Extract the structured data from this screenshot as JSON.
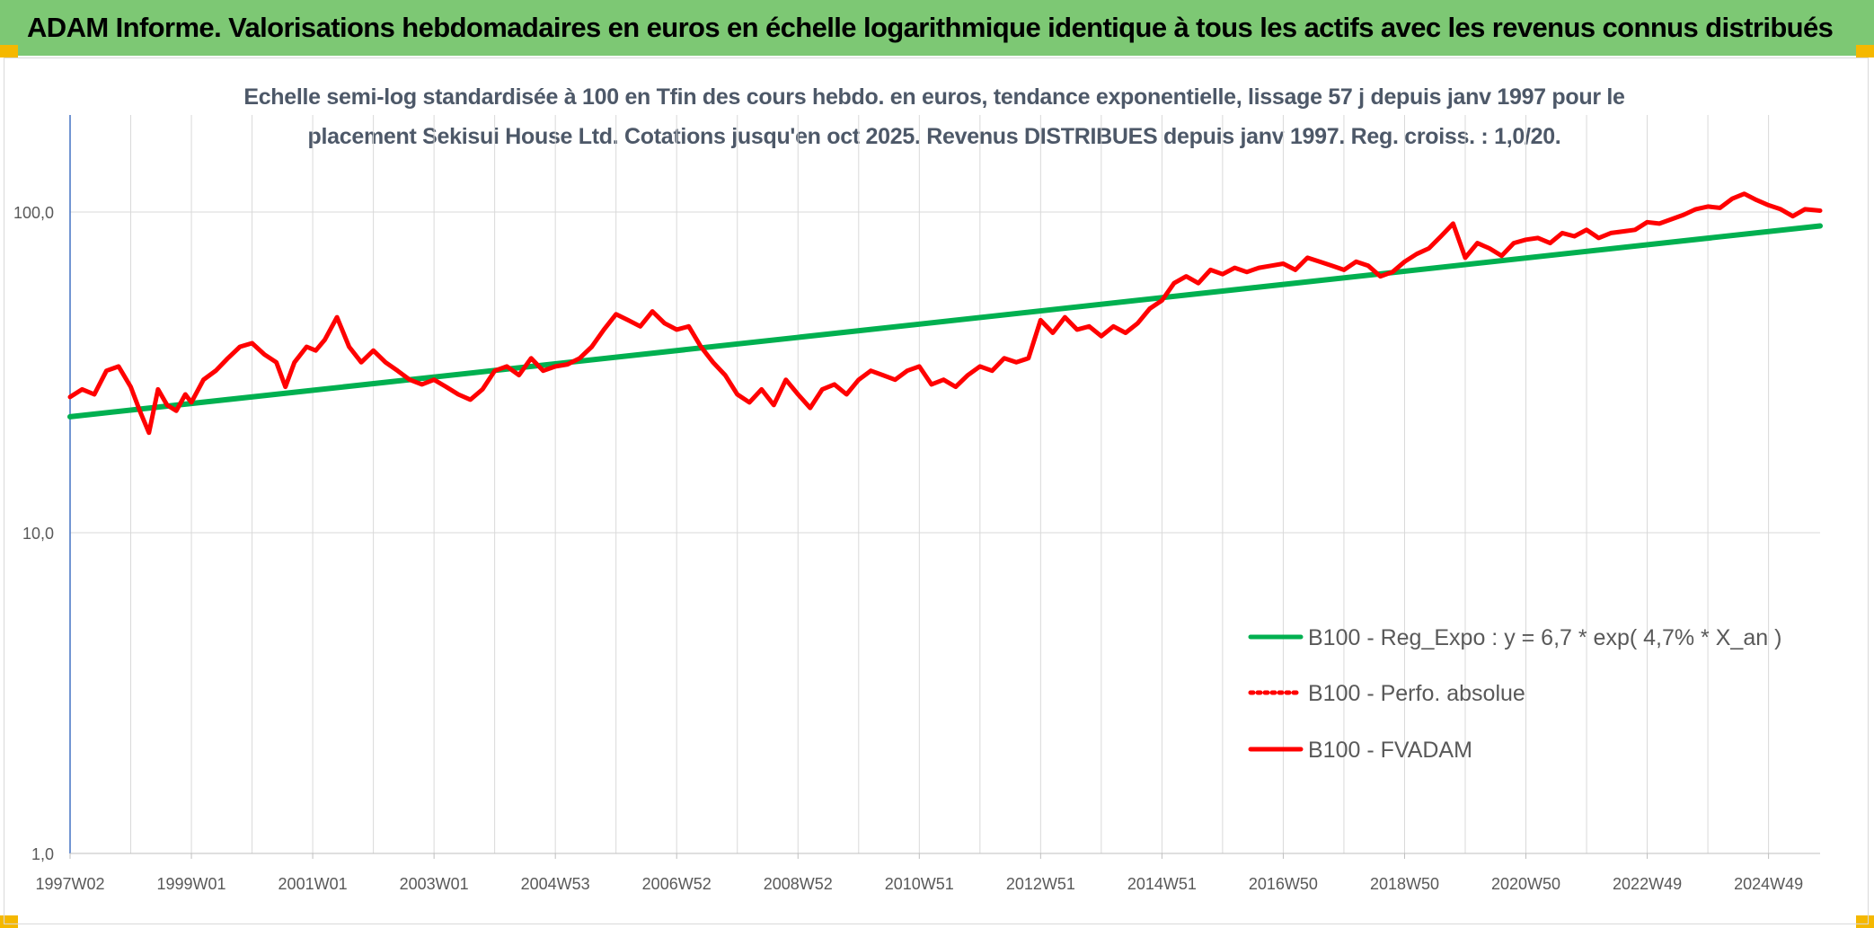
{
  "banner": {
    "title": "ADAM Informe. Valorisations hebdomadaires en euros en échelle logarithmique identique à tous les actifs avec les revenus connus distribués"
  },
  "chart_data": {
    "type": "line",
    "y_scale": "log",
    "title_line1": "Echelle semi-log standardisée à 100 en Tfin des cours hebdo. en euros, tendance exponentielle, lissage 57 j depuis janv 1997 pour le",
    "title_line2": "placement Sekisui House Ltd. Cotations jusqu'en oct 2025. Revenus DISTRIBUES depuis janv 1997. Reg. croiss. : 1,0/20.",
    "ylim": [
      1,
      200
    ],
    "y_ticks": [
      {
        "value": 1,
        "label": "1,0"
      },
      {
        "value": 10,
        "label": "10,0"
      },
      {
        "value": 100,
        "label": "100,0"
      }
    ],
    "x_range": [
      1997.0,
      2025.85
    ],
    "x_ticks": [
      {
        "x": 1997.0,
        "label": "1997W02"
      },
      {
        "x": 1999.0,
        "label": "1999W01"
      },
      {
        "x": 2001.0,
        "label": "2001W01"
      },
      {
        "x": 2003.0,
        "label": "2003W01"
      },
      {
        "x": 2005.0,
        "label": "2004W53"
      },
      {
        "x": 2007.0,
        "label": "2006W52"
      },
      {
        "x": 2009.0,
        "label": "2008W52"
      },
      {
        "x": 2011.0,
        "label": "2010W51"
      },
      {
        "x": 2013.0,
        "label": "2012W51"
      },
      {
        "x": 2015.0,
        "label": "2014W51"
      },
      {
        "x": 2017.0,
        "label": "2016W50"
      },
      {
        "x": 2019.0,
        "label": "2018W50"
      },
      {
        "x": 2021.0,
        "label": "2020W50"
      },
      {
        "x": 2023.0,
        "label": "2022W49"
      },
      {
        "x": 2025.0,
        "label": "2024W49"
      }
    ],
    "gridlines_per_year": 1,
    "legend_position": "bottom-right",
    "colors": {
      "reg": "#00b050",
      "perf": "#ff0000",
      "fvadam": "#ff0000",
      "axis": "#4472c4",
      "grid": "#d9d9d9",
      "text": "#595959"
    },
    "series": [
      {
        "name": "B100 - Reg_Expo : y = 6,7 * exp( 4,7% *  X_an )",
        "style": "solid-green",
        "x": [
          1997.0,
          2025.85
        ],
        "y": [
          23.0,
          90.5
        ]
      },
      {
        "name": "B100 - Perfo. absolue",
        "style": "dotted-red",
        "x": [],
        "y": []
      },
      {
        "name": "B100 - FVADAM",
        "style": "solid-red",
        "x": [
          1997.0,
          1997.2,
          1997.4,
          1997.6,
          1997.8,
          1998.0,
          1998.15,
          1998.3,
          1998.45,
          1998.6,
          1998.75,
          1998.9,
          1999.0,
          1999.2,
          1999.4,
          1999.6,
          1999.8,
          2000.0,
          2000.2,
          2000.4,
          2000.55,
          2000.7,
          2000.9,
          2001.05,
          2001.2,
          2001.4,
          2001.6,
          2001.8,
          2002.0,
          2002.2,
          2002.4,
          2002.6,
          2002.8,
          2003.0,
          2003.2,
          2003.4,
          2003.6,
          2003.8,
          2004.0,
          2004.2,
          2004.4,
          2004.6,
          2004.8,
          2005.0,
          2005.2,
          2005.4,
          2005.6,
          2005.8,
          2006.0,
          2006.2,
          2006.4,
          2006.6,
          2006.8,
          2007.0,
          2007.2,
          2007.4,
          2007.6,
          2007.8,
          2008.0,
          2008.2,
          2008.4,
          2008.6,
          2008.8,
          2009.0,
          2009.2,
          2009.4,
          2009.6,
          2009.8,
          2010.0,
          2010.2,
          2010.4,
          2010.6,
          2010.8,
          2011.0,
          2011.2,
          2011.4,
          2011.6,
          2011.8,
          2012.0,
          2012.2,
          2012.4,
          2012.6,
          2012.8,
          2013.0,
          2013.2,
          2013.4,
          2013.6,
          2013.8,
          2014.0,
          2014.2,
          2014.4,
          2014.6,
          2014.8,
          2015.0,
          2015.2,
          2015.4,
          2015.6,
          2015.8,
          2016.0,
          2016.2,
          2016.4,
          2016.6,
          2016.8,
          2017.0,
          2017.2,
          2017.4,
          2017.6,
          2017.8,
          2018.0,
          2018.2,
          2018.4,
          2018.6,
          2018.8,
          2019.0,
          2019.2,
          2019.4,
          2019.6,
          2019.8,
          2020.0,
          2020.2,
          2020.4,
          2020.6,
          2020.8,
          2021.0,
          2021.2,
          2021.4,
          2021.6,
          2021.8,
          2022.0,
          2022.2,
          2022.4,
          2022.6,
          2022.8,
          2023.0,
          2023.2,
          2023.4,
          2023.6,
          2023.8,
          2024.0,
          2024.2,
          2024.4,
          2024.6,
          2024.8,
          2025.0,
          2025.2,
          2025.4,
          2025.6,
          2025.85
        ],
        "y": [
          26.5,
          28.0,
          27.0,
          32.0,
          33.0,
          28.5,
          24.0,
          20.5,
          28.0,
          25.0,
          24.0,
          27.0,
          25.5,
          30.0,
          32.0,
          35.0,
          38.0,
          39.0,
          36.0,
          34.0,
          28.5,
          34.0,
          38.0,
          37.0,
          40.0,
          47.0,
          38.0,
          34.0,
          37.0,
          34.0,
          32.0,
          30.0,
          29.0,
          30.0,
          28.5,
          27.0,
          26.0,
          28.0,
          32.0,
          33.0,
          31.0,
          35.0,
          32.0,
          33.0,
          33.5,
          35.0,
          38.0,
          43.0,
          48.0,
          46.0,
          44.0,
          49.0,
          45.0,
          43.0,
          44.0,
          38.0,
          34.0,
          31.0,
          27.0,
          25.5,
          28.0,
          25.0,
          30.0,
          27.0,
          24.5,
          28.0,
          29.0,
          27.0,
          30.0,
          32.0,
          31.0,
          30.0,
          32.0,
          33.0,
          29.0,
          30.0,
          28.5,
          31.0,
          33.0,
          32.0,
          35.0,
          34.0,
          35.0,
          46.0,
          42.0,
          47.0,
          43.0,
          44.0,
          41.0,
          44.0,
          42.0,
          45.0,
          50.0,
          53.0,
          60.0,
          63.0,
          60.0,
          66.0,
          64.0,
          67.0,
          65.0,
          67.0,
          68.0,
          69.0,
          66.0,
          72.0,
          70.0,
          68.0,
          66.0,
          70.0,
          68.0,
          63.0,
          65.0,
          70.0,
          74.0,
          77.0,
          84.0,
          92.0,
          72.0,
          80.0,
          77.0,
          73.0,
          80.0,
          82.0,
          83.0,
          80.0,
          86.0,
          84.0,
          88.0,
          83.0,
          86.0,
          87.0,
          88.0,
          93.0,
          92.0,
          95.0,
          98.0,
          102.0,
          104.0,
          103.0,
          110.0,
          114.0,
          109.0,
          105.0,
          102.0,
          97.0,
          102.0,
          101.0
        ]
      }
    ]
  }
}
